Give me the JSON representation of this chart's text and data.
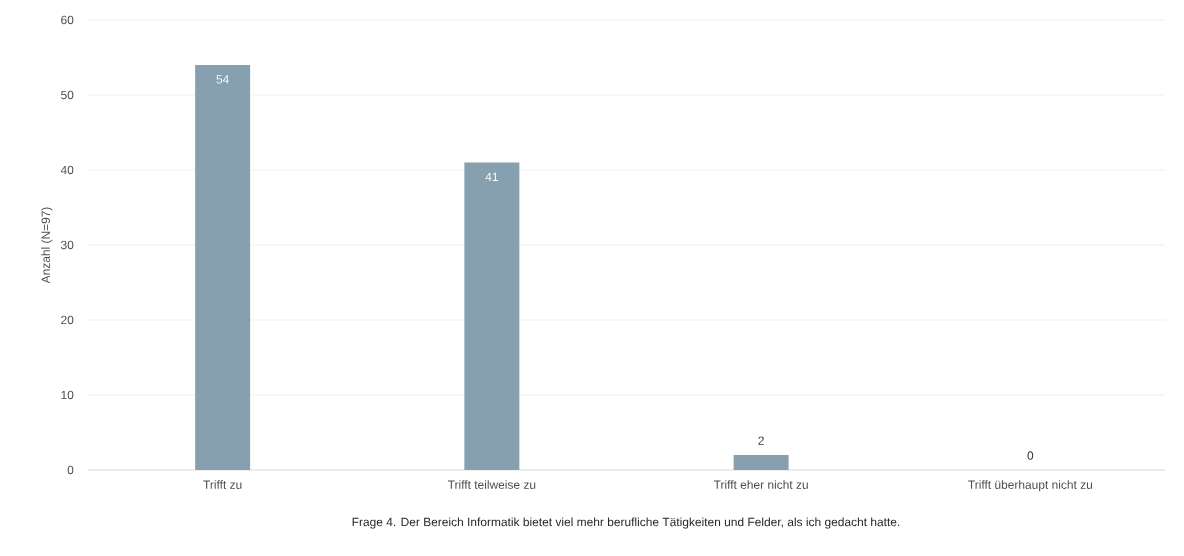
{
  "chart_data": {
    "type": "bar",
    "ylabel": "Anzahl (N=97)",
    "categories": [
      "Trifft zu",
      "Trifft teilweise zu",
      "Trifft eher nicht zu",
      "Trifft überhaupt nicht zu"
    ],
    "values": [
      54,
      41,
      2,
      0
    ],
    "color": "#86a0b0",
    "data_labels": true,
    "ylim": [
      0,
      60
    ],
    "yticks": [
      0,
      10,
      20,
      30,
      40,
      50,
      60
    ],
    "grid": "y",
    "annotations": [
      "Frage 4. Der Bereich Informatik bietet viel mehr berufliche Tätigkeiten und Felder, als ich gedacht hatte."
    ]
  }
}
